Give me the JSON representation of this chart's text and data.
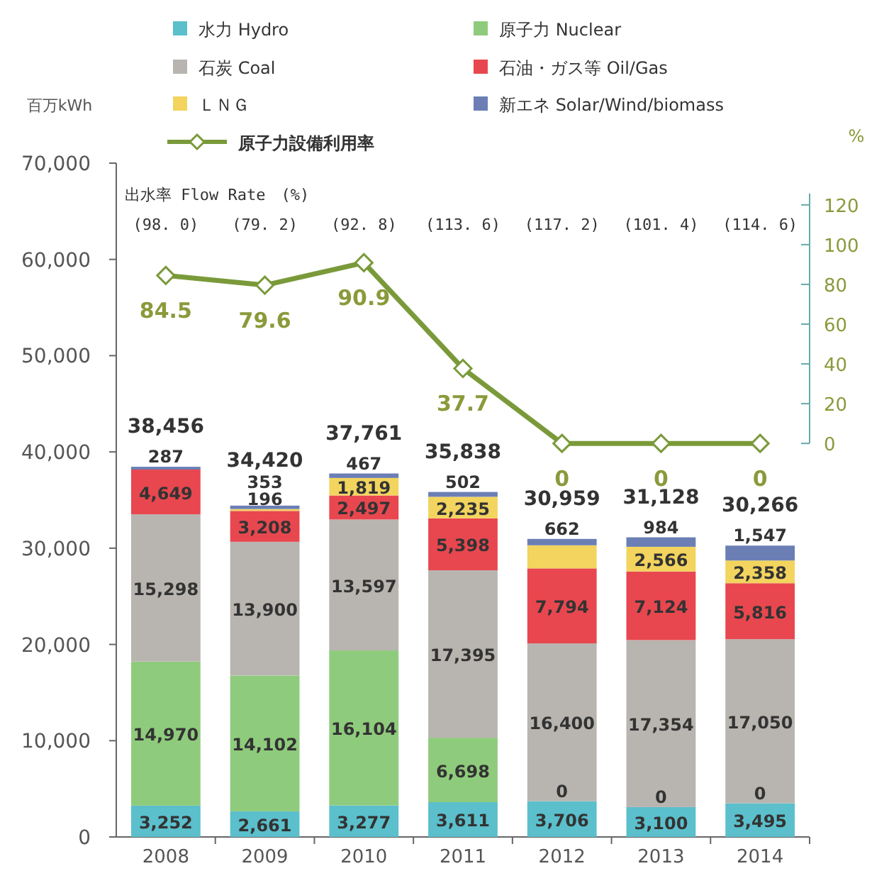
{
  "chart_data": {
    "type": "bar",
    "stacked": true,
    "legend": "top",
    "grid": false,
    "ylabel": "百万kWh",
    "y2label": "%",
    "categories": [
      "2008",
      "2009",
      "2010",
      "2011",
      "2012",
      "2013",
      "2014"
    ],
    "ylim": [
      0,
      70000
    ],
    "yticks": [
      0,
      {
        "value": 10000,
        "label": "10,000"
      },
      {
        "value": 20000,
        "label": "20,000"
      },
      {
        "value": 30000,
        "label": "30,000"
      },
      {
        "value": 40000,
        "label": "40,000"
      },
      {
        "value": 50000,
        "label": "50,000"
      },
      {
        "value": 60000,
        "label": "60,000"
      },
      {
        "value": 70000,
        "label": "70,000"
      }
    ],
    "y2lim": [
      -198,
      141
    ],
    "y2ticks": [
      0,
      20,
      40,
      60,
      80,
      100,
      120
    ],
    "series": [
      {
        "name": "水力 Hydro",
        "color": "#5bbfcc",
        "values": [
          3252,
          2661,
          3277,
          3611,
          3706,
          3100,
          3495
        ],
        "value_labels": [
          "3,252",
          "2,661",
          "3,277",
          "3,611",
          "3,706",
          "3,100",
          "3,495"
        ]
      },
      {
        "name": "原子力 Nuclear",
        "color": "#8fcb7c",
        "values": [
          14970,
          14102,
          16104,
          6698,
          0,
          0,
          0
        ],
        "value_labels": [
          "14,970",
          "14,102",
          "16,104",
          "6,698",
          null,
          null,
          null
        ]
      },
      {
        "name": "石炭 Coal",
        "color": "#b8b5b0",
        "values": [
          15298,
          13900,
          13597,
          17395,
          16400,
          17354,
          17050
        ],
        "value_labels": [
          "15,298",
          "13,900",
          "13,597",
          "17,395",
          "16,400",
          "17,354",
          "17,050"
        ]
      },
      {
        "name": "石油・ガス等 Oil/Gas",
        "color": "#e8474f",
        "values": [
          4649,
          3208,
          2497,
          5398,
          7794,
          7124,
          5816
        ],
        "value_labels": [
          "4,649",
          "3,208",
          "2,497",
          "5,398",
          "7,794",
          "7,124",
          "5,816"
        ]
      },
      {
        "name": "ＬＮＧ",
        "color": "#f2d45e",
        "values": [
          0,
          196,
          1819,
          2235,
          2400,
          2566,
          2358
        ],
        "value_labels": [
          null,
          "196",
          "1,819",
          "2,235",
          null,
          "2,566",
          "2,358"
        ]
      },
      {
        "name": "新エネ Solar/Wind/biomass",
        "color": "#6b7fb5",
        "values": [
          287,
          353,
          467,
          502,
          662,
          984,
          1547
        ],
        "value_labels": [
          "287",
          "353",
          "467",
          "502",
          "662",
          "984",
          "1,547"
        ]
      },
      {
        "name": "原子力設備利用率",
        "type": "line",
        "axis": "y2",
        "marker": "diamond",
        "color": "#7a9a3a",
        "data_labels": true,
        "values": [
          84.5,
          79.6,
          90.9,
          37.7,
          0,
          0,
          0
        ]
      }
    ],
    "totals": [
      "38,456",
      "34,420",
      "37,761",
      "35,838",
      "30,959",
      "31,128",
      "30,266"
    ],
    "annotations": [
      "出水率 Flow Rate　(%)",
      {
        "text": "0",
        "x": "2012",
        "y": 3706
      },
      {
        "text": "0",
        "x": "2013",
        "y": 3100
      },
      {
        "text": "0",
        "x": "2014",
        "y": 3495
      },
      "(98. 0)",
      "(79. 2)",
      "(92. 8)",
      "(113. 6)",
      "(117. 2)",
      "(101. 4)",
      "(114. 6)"
    ]
  }
}
